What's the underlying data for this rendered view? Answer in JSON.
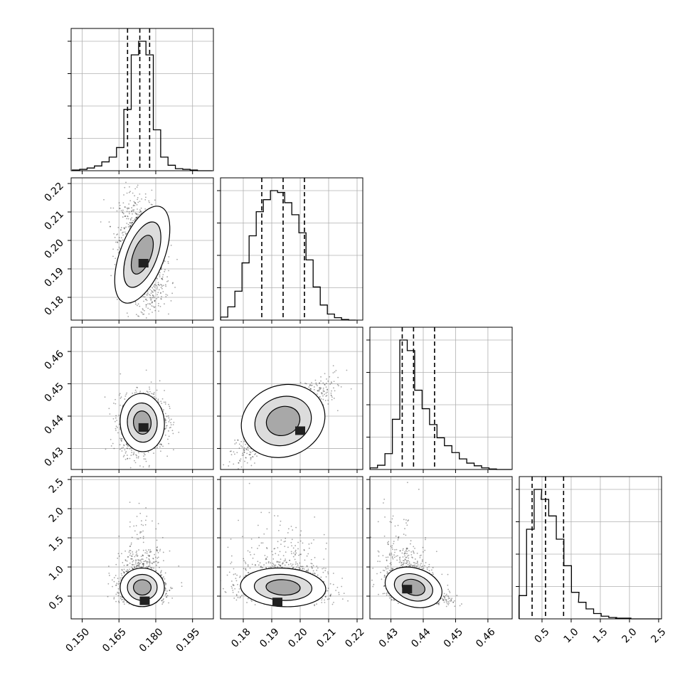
{
  "chart_data": {
    "type": "corner",
    "title": "",
    "grid": true,
    "parameters": [
      {
        "index": 0,
        "ticks": [
          "0.150",
          "0.165",
          "0.180",
          "0.195"
        ],
        "tick_values": [
          0.15,
          0.165,
          0.18,
          0.195
        ],
        "range": [
          0.1455,
          0.2035
        ],
        "quantiles": [
          0.1685,
          0.1735,
          0.1775
        ],
        "hist_centers": [
          0.1475,
          0.1505,
          0.1535,
          0.1565,
          0.1595,
          0.1625,
          0.1655,
          0.1685,
          0.1715,
          0.1745,
          0.1775,
          0.1805,
          0.1835,
          0.1865,
          0.1895,
          0.1925,
          0.1955,
          0.1985,
          0.2015
        ],
        "hist_counts": [
          1,
          2,
          4,
          7,
          13,
          20,
          34,
          90,
          170,
          190,
          170,
          60,
          20,
          8,
          3,
          2,
          1,
          0,
          0
        ]
      },
      {
        "index": 1,
        "ticks": [
          "0.18",
          "0.19",
          "0.20",
          "0.21",
          "0.22"
        ],
        "tick_values": [
          0.18,
          0.19,
          0.2,
          0.21,
          0.22
        ],
        "range": [
          0.172,
          0.222
        ],
        "quantiles": [
          0.1865,
          0.194,
          0.2015
        ],
        "hist_centers": [
          0.1733,
          0.1758,
          0.1783,
          0.1808,
          0.1833,
          0.1858,
          0.1883,
          0.1908,
          0.1933,
          0.1958,
          0.1983,
          0.2008,
          0.2033,
          0.2058,
          0.2083,
          0.2108,
          0.2133,
          0.2158,
          0.2183
        ],
        "hist_counts": [
          5,
          22,
          48,
          95,
          140,
          180,
          200,
          215,
          212,
          195,
          175,
          145,
          100,
          55,
          25,
          10,
          4,
          1,
          0
        ]
      },
      {
        "index": 2,
        "ticks": [
          "0.43",
          "0.44",
          "0.45",
          "0.46"
        ],
        "tick_values": [
          0.43,
          0.44,
          0.45,
          0.46
        ],
        "range": [
          0.4235,
          0.4675
        ],
        "quantiles": [
          0.4335,
          0.437,
          0.4435
        ],
        "hist_centers": [
          0.4247,
          0.427,
          0.4293,
          0.4316,
          0.4339,
          0.4362,
          0.4385,
          0.4408,
          0.4431,
          0.4454,
          0.4477,
          0.45,
          0.4523,
          0.4546,
          0.4569,
          0.4592,
          0.4615,
          0.4638,
          0.4661
        ],
        "hist_counts": [
          3,
          8,
          30,
          95,
          245,
          225,
          150,
          115,
          85,
          60,
          45,
          32,
          20,
          12,
          7,
          3,
          1,
          0,
          0
        ]
      },
      {
        "index": 3,
        "ticks": [
          "0.5",
          "1.0",
          "1.5",
          "2.0",
          "2.5"
        ],
        "tick_values": [
          0.5,
          1.0,
          1.5,
          2.0,
          2.5
        ],
        "range": [
          0.11,
          2.55
        ],
        "quantiles": [
          0.33,
          0.56,
          0.87
        ],
        "hist_centers": [
          0.17,
          0.3,
          0.43,
          0.55,
          0.68,
          0.81,
          0.94,
          1.07,
          1.19,
          1.32,
          1.45,
          1.58,
          1.71,
          1.83,
          1.96,
          2.09,
          2.22,
          2.35,
          2.48
        ],
        "hist_counts": [
          35,
          135,
          195,
          180,
          155,
          120,
          80,
          40,
          25,
          15,
          8,
          4,
          2,
          1,
          1,
          0,
          0,
          0,
          0
        ]
      }
    ],
    "pairs": [
      {
        "x": 0,
        "y": 1,
        "mean": [
          0.1745,
          0.195
        ],
        "sd": [
          0.0045,
          0.009
        ],
        "rho": -0.3,
        "peak": [
          0.175,
          0.192
        ]
      },
      {
        "x": 0,
        "y": 2,
        "mean": [
          0.1745,
          0.438
        ],
        "sd": [
          0.0045,
          0.0045
        ],
        "rho": 0.1,
        "peak": [
          0.175,
          0.4365
        ]
      },
      {
        "x": 1,
        "y": 2,
        "mean": [
          0.194,
          0.4385
        ],
        "sd": [
          0.0075,
          0.0055
        ],
        "rho": 0.85,
        "peak": [
          0.2,
          0.4355
        ]
      },
      {
        "x": 0,
        "y": 3,
        "mean": [
          0.1745,
          0.65
        ],
        "sd": [
          0.0045,
          0.3
        ],
        "rho": 0.0,
        "peak": [
          0.1755,
          0.42
        ]
      },
      {
        "x": 1,
        "y": 3,
        "mean": [
          0.194,
          0.65
        ],
        "sd": [
          0.0075,
          0.3
        ],
        "rho": -0.1,
        "peak": [
          0.192,
          0.4
        ]
      },
      {
        "x": 2,
        "y": 3,
        "mean": [
          0.437,
          0.65
        ],
        "sd": [
          0.0045,
          0.3
        ],
        "rho": -0.45,
        "peak": [
          0.435,
          0.62
        ]
      }
    ]
  }
}
